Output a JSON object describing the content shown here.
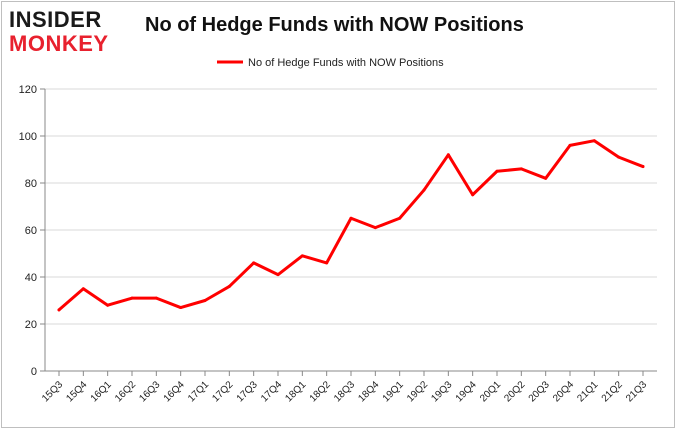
{
  "logo": {
    "top": "INSIDER",
    "bottom": "MONKEY"
  },
  "chart_data": {
    "type": "line",
    "title": "No of Hedge Funds with NOW Positions",
    "xlabel": "",
    "ylabel": "",
    "ylim": [
      0,
      120
    ],
    "yticks": [
      0,
      20,
      40,
      60,
      80,
      100,
      120
    ],
    "grid": true,
    "legend_position": "top-center",
    "categories": [
      "15Q3",
      "15Q4",
      "16Q1",
      "16Q2",
      "16Q3",
      "16Q4",
      "17Q1",
      "17Q2",
      "17Q3",
      "17Q4",
      "18Q1",
      "18Q2",
      "18Q3",
      "18Q4",
      "19Q1",
      "19Q2",
      "19Q3",
      "19Q4",
      "20Q1",
      "20Q2",
      "20Q3",
      "20Q4",
      "21Q1",
      "21Q2",
      "21Q3"
    ],
    "series": [
      {
        "name": "No of Hedge Funds with NOW Positions",
        "color": "#ff0000",
        "values": [
          26,
          35,
          28,
          31,
          31,
          27,
          30,
          36,
          46,
          41,
          49,
          46,
          65,
          61,
          65,
          77,
          92,
          75,
          85,
          86,
          82,
          96,
          98,
          91,
          87
        ]
      }
    ]
  }
}
